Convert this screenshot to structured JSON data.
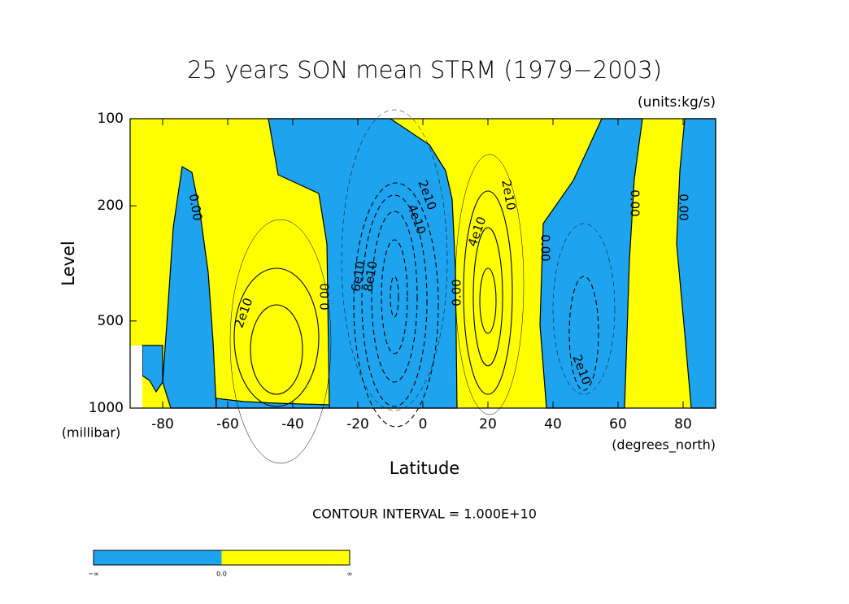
{
  "chart_data": {
    "type": "contour",
    "title": "25 years SON mean STRM (1979−2003)",
    "subtitle": "(units:kg/s)",
    "y_label": "Level",
    "y_units": "(millibar)",
    "x_label": "Latitude",
    "x_units": "(degrees_north)",
    "note": "CONTOUR INTERVAL = 1.000E+10",
    "xlim": [
      -90,
      90
    ],
    "xticks": [
      -80,
      -60,
      -40,
      -20,
      0,
      20,
      40,
      60,
      80
    ],
    "ylim": [
      1000,
      100
    ],
    "yticks": [
      100,
      200,
      500,
      1000
    ],
    "yscale": "log",
    "contour_labels": [
      "0.00",
      "2e10",
      "0.00",
      "6e10",
      "8e10",
      "2e10",
      "4e10",
      "0.00",
      "4e10",
      "2e10",
      "0.00",
      "0.00",
      "0.00",
      "2e10"
    ],
    "colorbar": {
      "colors": [
        "#1ea3ee",
        "#ffff00"
      ],
      "labels": [
        "−∞",
        "0.0",
        "∞"
      ]
    }
  }
}
